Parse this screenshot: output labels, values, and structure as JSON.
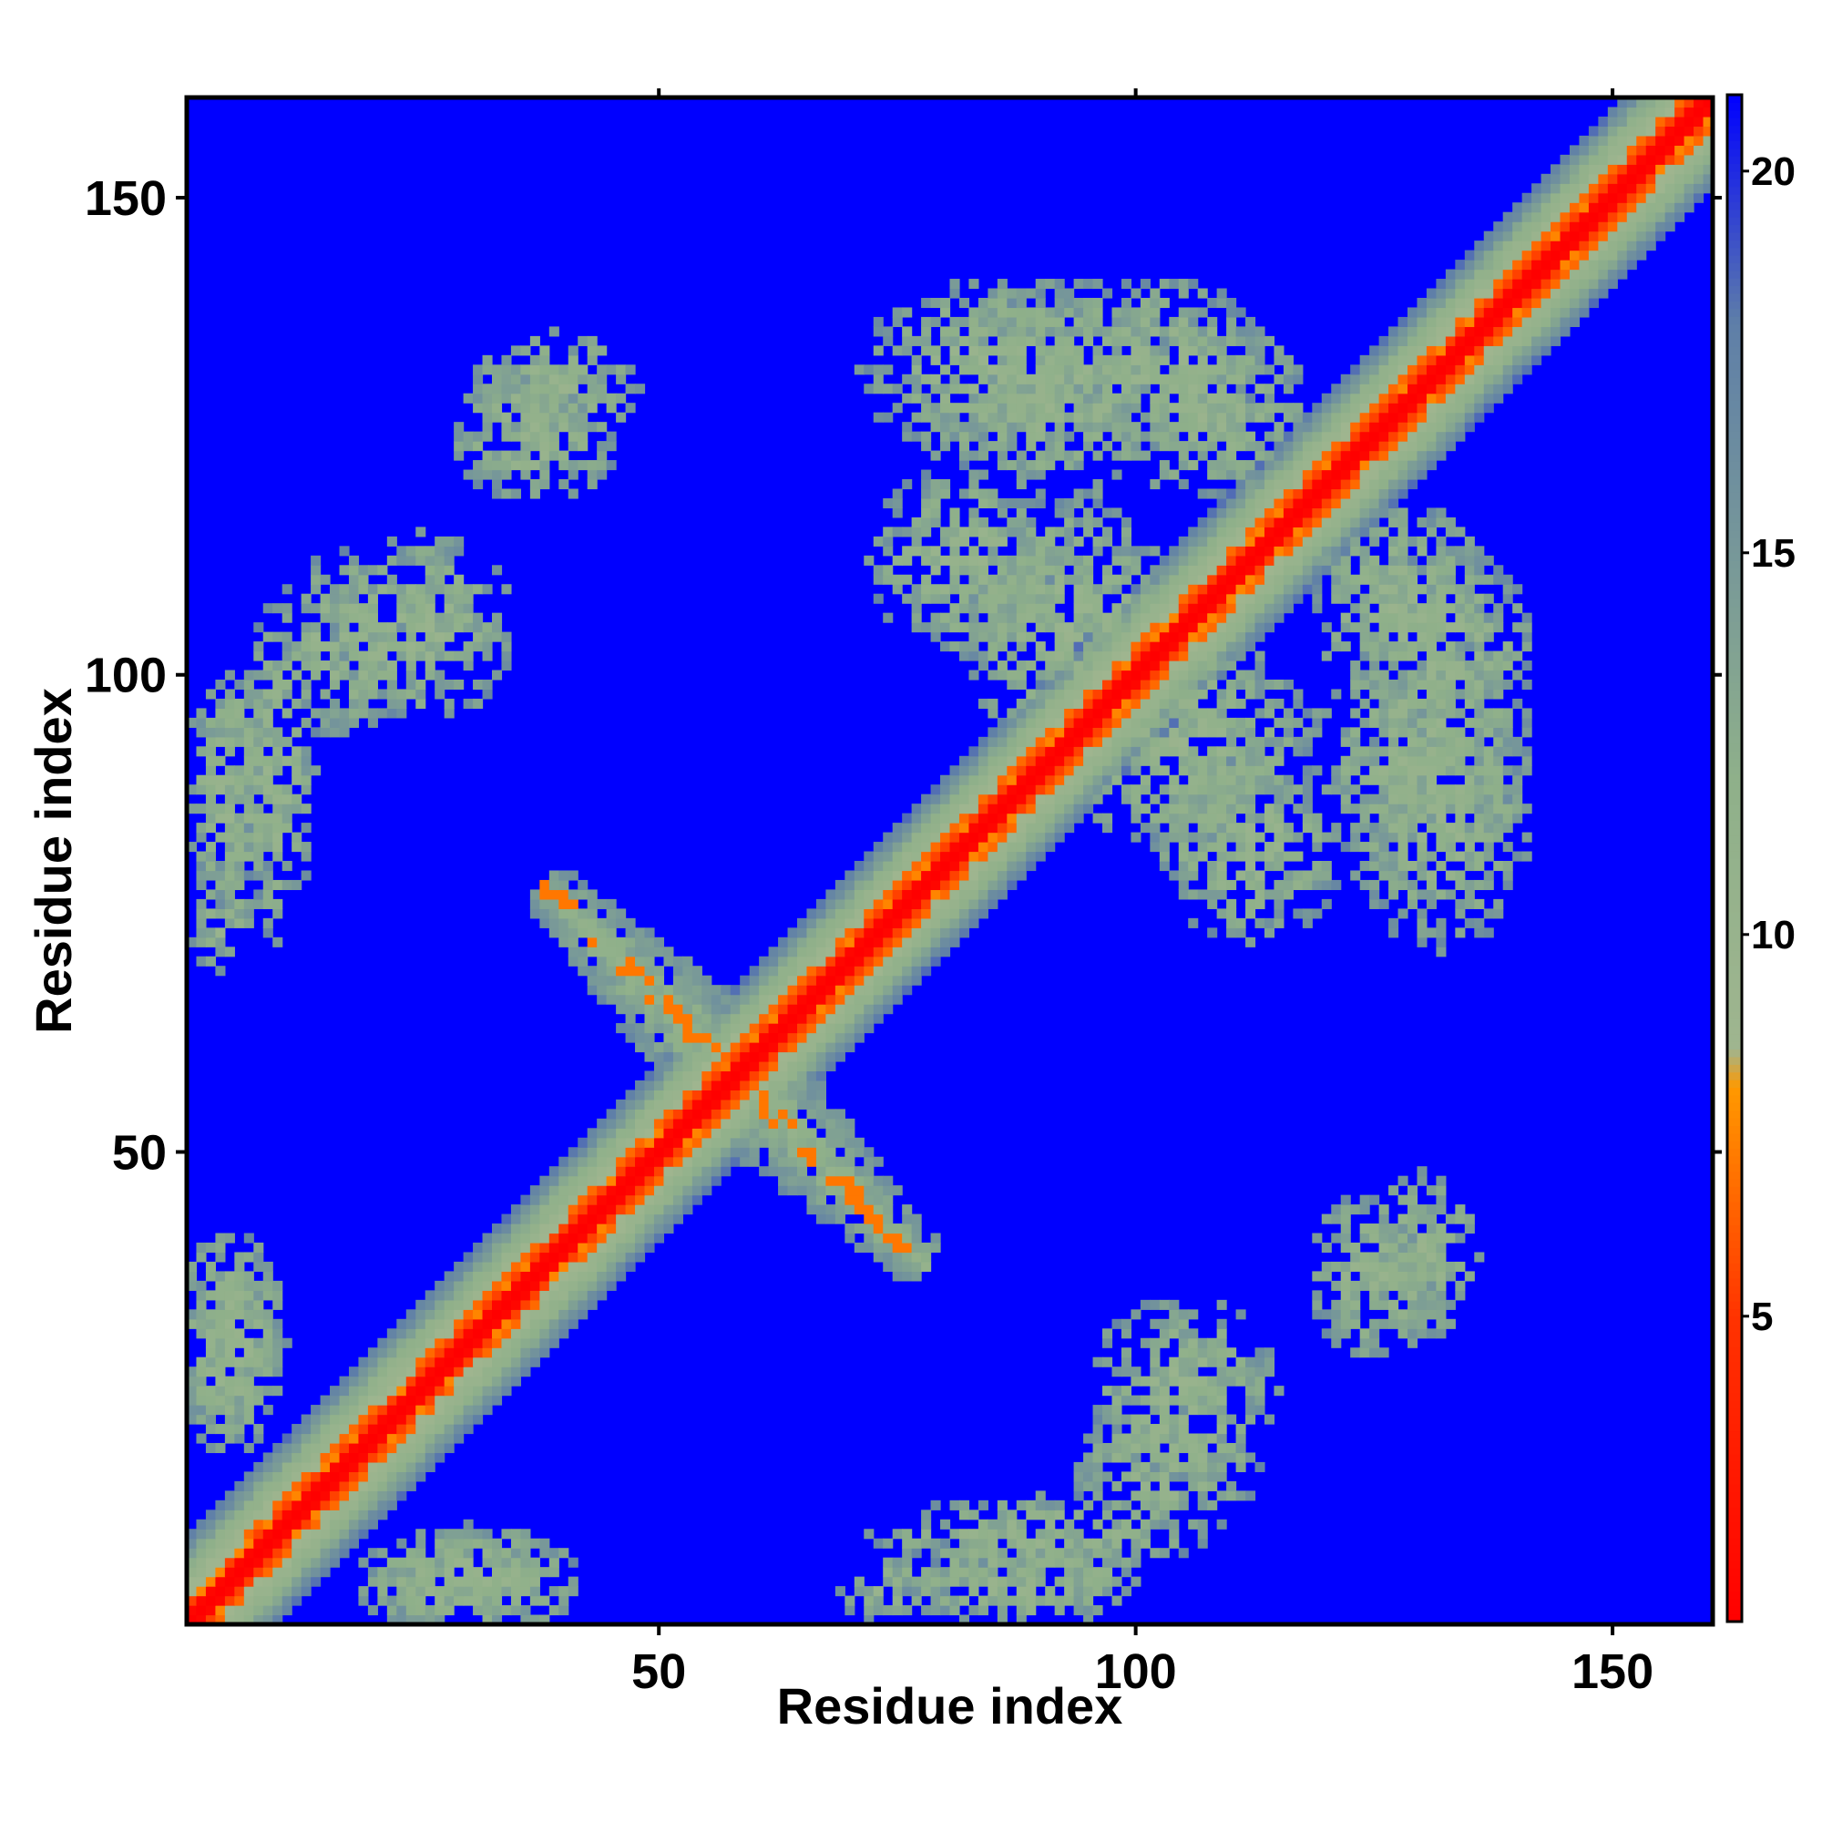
{
  "chart_data": {
    "type": "heatmap",
    "title": "",
    "xlabel": "Residue index",
    "ylabel": "Residue index",
    "xlim": [
      1,
      160
    ],
    "ylim": [
      1,
      160
    ],
    "n": 160,
    "x_ticks": [
      {
        "value": 50,
        "label": "50"
      },
      {
        "value": 100,
        "label": "100"
      },
      {
        "value": 150,
        "label": "150"
      }
    ],
    "y_ticks": [
      {
        "value": 50,
        "label": "50"
      },
      {
        "value": 100,
        "label": "100"
      },
      {
        "value": 150,
        "label": "150"
      }
    ],
    "colorbar": {
      "range": [
        1,
        21
      ],
      "ticks": [
        {
          "value": 5,
          "label": "5"
        },
        {
          "value": 10,
          "label": "10"
        },
        {
          "value": 15,
          "label": "15"
        },
        {
          "value": 20,
          "label": "20"
        }
      ],
      "stops": [
        {
          "value": 1,
          "color": "#ff0000"
        },
        {
          "value": 5,
          "color": "#ff3300"
        },
        {
          "value": 8,
          "color": "#ff9900"
        },
        {
          "value": 8.5,
          "color": "#9fb58f"
        },
        {
          "value": 12,
          "color": "#8fb08a"
        },
        {
          "value": 18,
          "color": "#5f7fa8"
        },
        {
          "value": 21,
          "color": "#0000ff"
        }
      ]
    },
    "colors": {
      "background": "#0000ff",
      "near": "#ff0000",
      "orange": "#ff9900",
      "mid": "#9cb88f"
    },
    "contact_regions": [
      {
        "name": "main-diagonal",
        "kind": "diagonal"
      },
      {
        "name": "antiparallel-band",
        "kind": "anti",
        "sum": 116,
        "diff_range": [
          -40,
          40
        ],
        "width": 6
      },
      {
        "name": "cluster-a",
        "center": [
          39,
          130
        ],
        "radius": [
          9,
          6
        ]
      },
      {
        "name": "cluster-b",
        "center": [
          85,
          132
        ],
        "radius": [
          14,
          10
        ]
      },
      {
        "name": "cluster-c",
        "center": [
          103,
          132
        ],
        "radius": [
          10,
          10
        ]
      },
      {
        "name": "cluster-d",
        "center": [
          93,
          105
        ],
        "radius": [
          11,
          14
        ]
      },
      {
        "name": "cluster-e",
        "center": [
          128,
          108
        ],
        "radius": [
          10,
          10
        ]
      },
      {
        "name": "cluster-f",
        "center": [
          130,
          92
        ],
        "radius": [
          12,
          12
        ]
      },
      {
        "name": "cluster-g",
        "center": [
          112,
          82
        ],
        "radius": [
          10,
          10
        ]
      },
      {
        "name": "cluster-h",
        "center": [
          10,
          90
        ],
        "radius": [
          4,
          18
        ]
      },
      {
        "name": "cluster-i",
        "center": [
          4,
          75
        ],
        "radius": [
          4,
          6
        ]
      },
      {
        "name": "cluster-j",
        "center": [
          125,
          37
        ],
        "radius": [
          7,
          9
        ]
      },
      {
        "name": "cluster-k",
        "center": [
          5,
          30
        ],
        "radius": [
          6,
          12
        ]
      },
      {
        "name": "cluster-l",
        "center": [
          30,
          5
        ],
        "radius": [
          12,
          6
        ]
      },
      {
        "name": "cluster-m",
        "center": [
          88,
          5
        ],
        "radius": [
          14,
          5
        ]
      },
      {
        "name": "cluster-n",
        "center": [
          105,
          25
        ],
        "radius": [
          10,
          10
        ]
      },
      {
        "name": "cluster-o",
        "center": [
          17,
          103
        ],
        "radius": [
          8,
          10
        ]
      }
    ]
  }
}
